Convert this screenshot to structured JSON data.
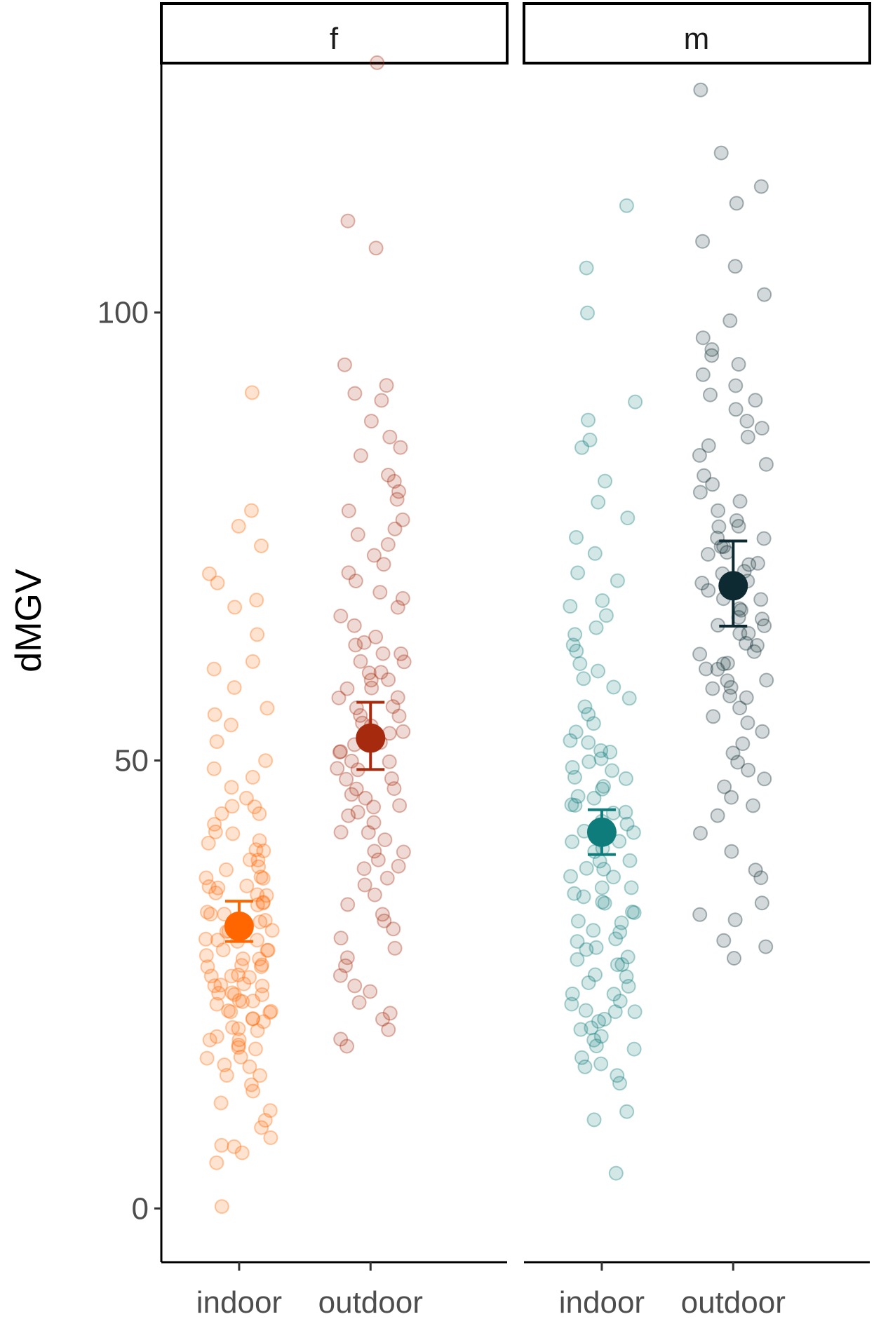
{
  "chart_data": {
    "type": "scatter",
    "title": "",
    "ylabel": "dMGV",
    "xlabel": "",
    "ylim": [
      -6,
      128
    ],
    "y_ticks": [
      0,
      50,
      100
    ],
    "y_tick_labels": [
      "0",
      "50",
      "100"
    ],
    "grid": false,
    "legend": "none",
    "categories": [
      "indoor",
      "outdoor"
    ],
    "panels": [
      {
        "strip_label": "f",
        "groups": [
          {
            "category": "indoor",
            "color": "#FF6600",
            "mean": 31.5,
            "ci": [
              29.8,
              34.3
            ],
            "points": [
              0,
              5,
              6,
              7,
              7,
              8,
              9,
              10,
              11,
              12,
              13,
              14,
              15,
              15,
              16,
              16,
              17,
              17,
              18,
              18,
              18,
              19,
              19,
              19,
              20,
              20,
              20,
              21,
              21,
              21,
              22,
              22,
              22,
              22,
              23,
              23,
              23,
              23,
              24,
              24,
              24,
              24,
              25,
              25,
              25,
              25,
              26,
              26,
              26,
              26,
              27,
              27,
              27,
              27,
              28,
              28,
              28,
              29,
              29,
              29,
              30,
              30,
              30,
              30,
              31,
              31,
              31,
              32,
              32,
              32,
              33,
              33,
              33,
              34,
              34,
              34,
              35,
              35,
              35,
              36,
              36,
              36,
              37,
              37,
              37,
              38,
              38,
              39,
              39,
              40,
              40,
              41,
              41,
              42,
              42,
              43,
              44,
              44,
              45,
              45,
              46,
              47,
              48,
              49,
              50,
              52,
              54,
              55,
              56,
              58,
              60,
              61,
              64,
              67,
              68,
              70,
              71,
              74,
              76,
              78,
              91
            ]
          },
          {
            "category": "outdoor",
            "color": "#A62B0E",
            "mean": 52.5,
            "ci": [
              49.0,
              56.5
            ],
            "points": [
              18,
              19,
              20,
              21,
              22,
              23,
              24,
              25,
              26,
              27,
              28,
              29,
              30,
              31,
              32,
              33,
              34,
              35,
              36,
              37,
              38,
              38,
              39,
              40,
              40,
              41,
              42,
              42,
              43,
              44,
              44,
              45,
              45,
              46,
              46,
              47,
              47,
              48,
              48,
              49,
              49,
              50,
              50,
              51,
              51,
              52,
              52,
              53,
              53,
              54,
              54,
              55,
              55,
              56,
              56,
              57,
              57,
              58,
              58,
              59,
              59,
              60,
              60,
              61,
              61,
              62,
              62,
              63,
              63,
              64,
              65,
              66,
              67,
              68,
              69,
              70,
              71,
              72,
              73,
              74,
              75,
              76,
              77,
              78,
              79,
              80,
              81,
              82,
              84,
              85,
              86,
              88,
              90,
              91,
              92,
              94,
              107,
              110,
              128
            ]
          }
        ]
      },
      {
        "strip_label": "m",
        "groups": [
          {
            "category": "indoor",
            "color": "#0E7C7B",
            "mean": 42.0,
            "ci": [
              39.5,
              44.5
            ],
            "points": [
              4,
              10,
              11,
              14,
              15,
              16,
              16,
              17,
              18,
              18,
              19,
              19,
              20,
              20,
              21,
              21,
              22,
              22,
              22,
              23,
              23,
              24,
              24,
              25,
              25,
              26,
              26,
              27,
              27,
              28,
              28,
              29,
              29,
              30,
              30,
              31,
              31,
              32,
              32,
              33,
              33,
              34,
              34,
              35,
              35,
              36,
              36,
              37,
              37,
              38,
              38,
              39,
              39,
              40,
              40,
              41,
              41,
              42,
              42,
              43,
              43,
              44,
              44,
              45,
              45,
              46,
              46,
              47,
              47,
              48,
              48,
              49,
              49,
              50,
              50,
              51,
              51,
              52,
              52,
              53,
              54,
              55,
              56,
              57,
              58,
              59,
              60,
              61,
              62,
              63,
              64,
              65,
              66,
              67,
              68,
              70,
              71,
              73,
              75,
              77,
              79,
              81,
              85,
              86,
              88,
              90,
              100,
              105,
              112
            ]
          },
          {
            "category": "outdoor",
            "color": "#0D2A33",
            "mean": 69.5,
            "ci": [
              65.0,
              74.5
            ],
            "points": [
              28,
              29,
              30,
              32,
              33,
              34,
              37,
              38,
              40,
              42,
              44,
              45,
              46,
              47,
              48,
              49,
              50,
              51,
              52,
              53,
              54,
              55,
              56,
              57,
              57,
              58,
              58,
              59,
              59,
              60,
              60,
              61,
              61,
              62,
              62,
              63,
              63,
              64,
              64,
              65,
              65,
              66,
              66,
              67,
              67,
              68,
              68,
              69,
              69,
              70,
              70,
              71,
              71,
              72,
              72,
              73,
              73,
              74,
              74,
              75,
              75,
              76,
              76,
              77,
              78,
              79,
              80,
              81,
              82,
              83,
              84,
              85,
              86,
              87,
              88,
              89,
              90,
              91,
              92,
              93,
              94,
              95,
              96,
              97,
              99,
              102,
              105,
              108,
              112,
              114,
              118,
              125
            ]
          }
        ]
      }
    ]
  }
}
